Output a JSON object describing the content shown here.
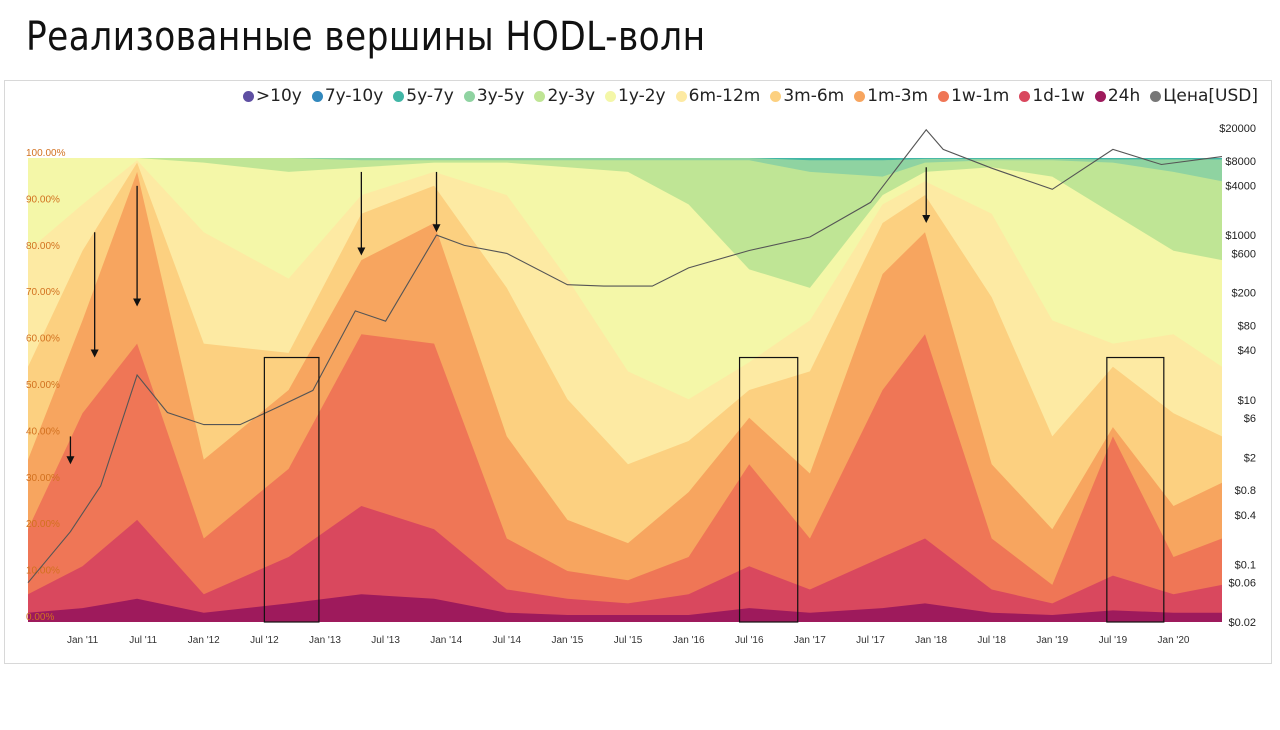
{
  "page": {
    "title": "Реализованные вершины HODL-волн"
  },
  "chart_data": {
    "type": "area",
    "legend_position": "top-right",
    "legend": [
      {
        "label": ">10y",
        "color": "#5e4fa2"
      },
      {
        "label": "7y-10y",
        "color": "#3288bd"
      },
      {
        "label": "5y-7y",
        "color": "#41b6a6"
      },
      {
        "label": "3y-5y",
        "color": "#8fd3a1"
      },
      {
        "label": "2y-3y",
        "color": "#bfe595"
      },
      {
        "label": "1y-2y",
        "color": "#f4f7a8"
      },
      {
        "label": "6m-12m",
        "color": "#fdeaa3"
      },
      {
        "label": "3m-6m",
        "color": "#fcd080"
      },
      {
        "label": "1m-3m",
        "color": "#f7a55f"
      },
      {
        "label": "1w-1m",
        "color": "#ef7656"
      },
      {
        "label": "1d-1w",
        "color": "#d9485e"
      },
      {
        "label": "24h",
        "color": "#9e1a5c"
      },
      {
        "label": "Цена[USD]",
        "color": "#777777"
      }
    ],
    "x_ticks": [
      "Jan '11",
      "Jul '11",
      "Jan '12",
      "Jul '12",
      "Jan '13",
      "Jul '13",
      "Jan '14",
      "Jul '14",
      "Jan '15",
      "Jul '15",
      "Jan '16",
      "Jul '16",
      "Jan '17",
      "Jul '17",
      "Jan '18",
      "Jul '18",
      "Jan '19",
      "Jul '19",
      "Jan '20"
    ],
    "x_range": [
      2010.55,
      2020.4
    ],
    "y_left": {
      "range": [
        0,
        100
      ],
      "unit": "%",
      "ticks": [
        "0.00%",
        "10.00%",
        "20.00%",
        "30.00%",
        "40.00%",
        "50.00%",
        "60.00%",
        "70.00%",
        "80.00%",
        "90.00%",
        "100.00%"
      ]
    },
    "y_right": {
      "scale": "log",
      "ticks": [
        "$20000",
        "$8000",
        "$4000",
        "$1000",
        "$600",
        "$200",
        "$80",
        "$40",
        "$10",
        "$6",
        "$2",
        "$0.8",
        "$0.4",
        "$0.1",
        "$0.06",
        "$0.02"
      ]
    },
    "series": [
      {
        "name": "24h",
        "t": [
          2010.55,
          2011.0,
          2011.45,
          2012.0,
          2012.7,
          2013.3,
          2013.9,
          2014.5,
          2015.0,
          2015.5,
          2016.0,
          2016.5,
          2017.0,
          2017.6,
          2017.95,
          2018.5,
          2019.0,
          2019.5,
          2020.0,
          2020.4
        ],
        "v": [
          2,
          3,
          5,
          2,
          4,
          6,
          5,
          2,
          1.5,
          1.5,
          1.5,
          3,
          2,
          3,
          4,
          2,
          1.5,
          2.5,
          2,
          2
        ]
      },
      {
        "name": "1d-1w",
        "t": [
          2010.55,
          2011.0,
          2011.45,
          2012.0,
          2012.7,
          2013.3,
          2013.9,
          2014.5,
          2015.0,
          2015.5,
          2016.0,
          2016.5,
          2017.0,
          2017.6,
          2017.95,
          2018.5,
          2019.0,
          2019.5,
          2020.0,
          2020.4
        ],
        "v": [
          6,
          12,
          22,
          6,
          14,
          25,
          20,
          7,
          5,
          4,
          6,
          12,
          7,
          14,
          18,
          7,
          4,
          10,
          6,
          8
        ]
      },
      {
        "name": "1w-1m",
        "t": [
          2010.55,
          2011.0,
          2011.45,
          2012.0,
          2012.7,
          2013.3,
          2013.9,
          2014.5,
          2015.0,
          2015.5,
          2016.0,
          2016.5,
          2017.0,
          2017.6,
          2017.95,
          2018.5,
          2019.0,
          2019.5,
          2020.0,
          2020.4
        ],
        "v": [
          20,
          45,
          60,
          18,
          33,
          62,
          60,
          18,
          11,
          9,
          14,
          34,
          18,
          50,
          62,
          18,
          8,
          40,
          14,
          18
        ]
      },
      {
        "name": "1m-3m",
        "t": [
          2010.55,
          2011.0,
          2011.45,
          2012.0,
          2012.7,
          2013.3,
          2013.9,
          2014.5,
          2015.0,
          2015.5,
          2016.0,
          2016.5,
          2017.0,
          2017.6,
          2017.95,
          2018.5,
          2019.0,
          2019.5,
          2020.0,
          2020.4
        ],
        "v": [
          35,
          65,
          97,
          35,
          50,
          78,
          86,
          40,
          22,
          17,
          28,
          44,
          32,
          75,
          84,
          34,
          20,
          42,
          25,
          30
        ]
      },
      {
        "name": "3m-6m",
        "t": [
          2010.55,
          2011.0,
          2011.45,
          2012.0,
          2012.7,
          2013.3,
          2013.9,
          2014.5,
          2015.0,
          2015.5,
          2016.0,
          2016.5,
          2017.0,
          2017.6,
          2017.95,
          2018.5,
          2019.0,
          2019.5,
          2020.0,
          2020.4
        ],
        "v": [
          55,
          80,
          99,
          60,
          58,
          88,
          94,
          72,
          48,
          34,
          39,
          50,
          54,
          86,
          92,
          70,
          40,
          55,
          45,
          40
        ]
      },
      {
        "name": "6m-12m",
        "t": [
          2010.55,
          2011.0,
          2011.45,
          2012.0,
          2012.7,
          2013.3,
          2013.9,
          2014.5,
          2015.0,
          2015.5,
          2016.0,
          2016.5,
          2017.0,
          2017.6,
          2017.95,
          2018.5,
          2019.0,
          2019.5,
          2020.0,
          2020.4
        ],
        "v": [
          80,
          90,
          99.5,
          84,
          74,
          92,
          97,
          92,
          74,
          54,
          48,
          56,
          65,
          90,
          95,
          88,
          65,
          60,
          62,
          55
        ]
      },
      {
        "name": "1y-2y",
        "t": [
          2010.55,
          2011.0,
          2011.45,
          2012.0,
          2012.7,
          2013.3,
          2013.9,
          2014.5,
          2015.0,
          2015.5,
          2016.0,
          2016.5,
          2017.0,
          2017.6,
          2017.95,
          2018.5,
          2019.0,
          2019.5,
          2020.0,
          2020.4
        ],
        "v": [
          100,
          100,
          100,
          99,
          97,
          98,
          99,
          99,
          98,
          97,
          90,
          76,
          72,
          92,
          97,
          98,
          96,
          88,
          80,
          78
        ]
      },
      {
        "name": "2y-3y",
        "t": [
          2010.55,
          2011.0,
          2011.45,
          2012.0,
          2012.7,
          2013.3,
          2013.9,
          2014.5,
          2015.0,
          2015.5,
          2016.0,
          2016.5,
          2017.0,
          2017.6,
          2017.95,
          2018.5,
          2019.0,
          2019.5,
          2020.0,
          2020.4
        ],
        "v": [
          100,
          100,
          100,
          100,
          100,
          99.5,
          99.5,
          99.5,
          99.5,
          99.5,
          99.5,
          99.5,
          97,
          96,
          99,
          99.5,
          99.5,
          99,
          97,
          95
        ]
      },
      {
        "name": "3y-5y",
        "t": [
          2010.55,
          2011.0,
          2011.45,
          2012.0,
          2012.7,
          2013.3,
          2013.9,
          2014.5,
          2015.0,
          2015.5,
          2016.0,
          2016.5,
          2017.0,
          2017.6,
          2017.95,
          2018.5,
          2019.0,
          2019.5,
          2020.0,
          2020.4
        ],
        "v": [
          100,
          100,
          100,
          100,
          100,
          100,
          100,
          100,
          100,
          100,
          100,
          100,
          99.5,
          99.5,
          99.8,
          99.8,
          99.8,
          99.7,
          99.7,
          99.7
        ]
      },
      {
        "name": "Цена[USD]",
        "t": [
          2010.55,
          2010.9,
          2011.15,
          2011.45,
          2011.7,
          2012.0,
          2012.3,
          2012.6,
          2012.9,
          2013.25,
          2013.5,
          2013.92,
          2014.15,
          2014.5,
          2015.0,
          2015.3,
          2015.7,
          2016.0,
          2016.5,
          2017.0,
          2017.5,
          2017.96,
          2018.1,
          2018.5,
          2019.0,
          2019.5,
          2019.9,
          2020.4
        ],
        "v": [
          0.06,
          0.25,
          0.9,
          20,
          7,
          5,
          5,
          8,
          13,
          120,
          90,
          1000,
          750,
          600,
          250,
          240,
          240,
          400,
          650,
          950,
          2500,
          19000,
          11000,
          6500,
          3600,
          11000,
          7200,
          9000
        ]
      }
    ],
    "arrows": [
      {
        "x": 2010.9,
        "from": 40,
        "to": 34
      },
      {
        "x": 2011.1,
        "from": 84,
        "to": 57
      },
      {
        "x": 2011.45,
        "from": 94,
        "to": 68
      },
      {
        "x": 2013.3,
        "from": 97,
        "to": 79
      },
      {
        "x": 2013.92,
        "from": 97,
        "to": 84
      },
      {
        "x": 2017.96,
        "from": 98,
        "to": 86
      }
    ],
    "boxes": [
      {
        "x0": 2012.5,
        "x1": 2012.95,
        "y_top": 57
      },
      {
        "x0": 2016.42,
        "x1": 2016.9,
        "y_top": 57
      },
      {
        "x0": 2019.45,
        "x1": 2019.92,
        "y_top": 57
      }
    ]
  }
}
